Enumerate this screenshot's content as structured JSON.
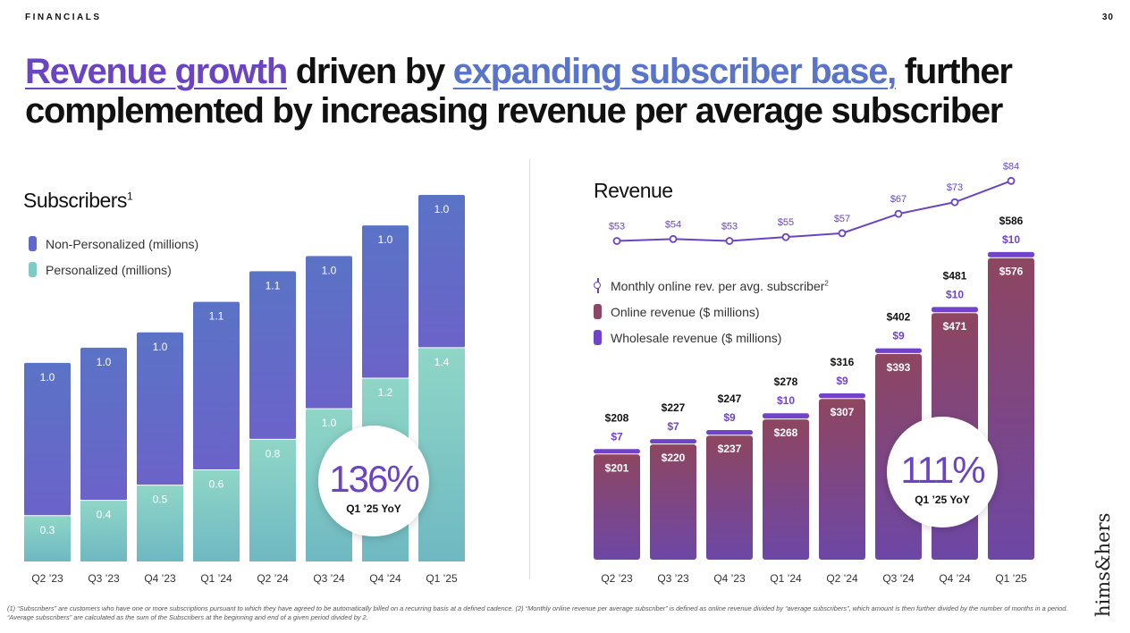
{
  "header": {
    "section_label": "FINANCIALS",
    "page_number": "30"
  },
  "headline": {
    "part1": "Revenue growth",
    "part2": " driven by ",
    "part3": "expanding subscriber base,",
    "part4": " further complemented by increasing revenue per average subscriber"
  },
  "colors": {
    "purple_accent": "#6a44c2",
    "blue_accent": "#5a74c9",
    "non_personalized_top": "#5a73c6",
    "non_personalized_bottom": "#6b63c9",
    "personalized_top": "#8fd6c7",
    "personalized_bottom": "#6fb8c2",
    "online_top": "#8e4660",
    "online_bottom": "#6d47a6",
    "wholesale": "#7143c9"
  },
  "subscribers": {
    "title": "Subscribers",
    "title_sup": "1",
    "legend": [
      {
        "label": "Non-Personalized (millions)",
        "color": "#6069c8"
      },
      {
        "label": "Personalized (millions)",
        "color": "#7fcbc3"
      }
    ],
    "callout": {
      "value": "136%",
      "label": "Q1 ’25 YoY"
    }
  },
  "revenue": {
    "title": "Revenue",
    "legend": [
      {
        "label": "Monthly online rev. per avg. subscriber",
        "sup": "2",
        "type": "line"
      },
      {
        "label": "Online revenue ($ millions)",
        "color": "#8a4767"
      },
      {
        "label": "Wholesale revenue ($ millions)",
        "color": "#7143c9"
      }
    ],
    "callout": {
      "value": "111%",
      "label": "Q1 ’25 YoY"
    }
  },
  "chart_data": [
    {
      "type": "bar",
      "stacked": true,
      "title": "Subscribers",
      "categories": [
        "Q2 ’23",
        "Q3 ’23",
        "Q4 ’23",
        "Q1 ’24",
        "Q2 ’24",
        "Q3 ’24",
        "Q4 ’24",
        "Q1 ’25"
      ],
      "series": [
        {
          "name": "Personalized (millions)",
          "values": [
            0.3,
            0.4,
            0.5,
            0.6,
            0.8,
            1.0,
            1.2,
            1.4
          ],
          "labels": [
            "0.3",
            "0.4",
            "0.5",
            "0.6",
            "0.8",
            "1.0",
            "1.2",
            "1.4"
          ]
        },
        {
          "name": "Non-Personalized (millions)",
          "values": [
            1.0,
            1.0,
            1.0,
            1.1,
            1.1,
            1.0,
            1.0,
            1.0
          ],
          "labels": [
            "1.0",
            "1.0",
            "1.0",
            "1.1",
            "1.1",
            "1.0",
            "1.0",
            "1.0"
          ]
        }
      ],
      "ylim": [
        0,
        2.4
      ]
    },
    {
      "type": "bar",
      "stacked": true,
      "title": "Revenue",
      "categories": [
        "Q2 ’23",
        "Q3 ’23",
        "Q4 ’23",
        "Q1 ’24",
        "Q2 ’24",
        "Q3 ’24",
        "Q4 ’24",
        "Q1 ’25"
      ],
      "series": [
        {
          "name": "Online revenue ($ millions)",
          "values": [
            201,
            220,
            237,
            268,
            307,
            393,
            471,
            576
          ],
          "labels": [
            "$201",
            "$220",
            "$237",
            "$268",
            "$307",
            "$393",
            "$471",
            "$576"
          ]
        },
        {
          "name": "Wholesale revenue ($ millions)",
          "values": [
            7,
            7,
            9,
            10,
            9,
            9,
            10,
            10
          ],
          "labels": [
            "$7",
            "$7",
            "$9",
            "$10",
            "$9",
            "$9",
            "$10",
            "$10"
          ]
        }
      ],
      "totals": [
        208,
        227,
        247,
        278,
        316,
        402,
        481,
        586
      ],
      "total_labels": [
        "$208",
        "$227",
        "$247",
        "$278",
        "$316",
        "$402",
        "$481",
        "$586"
      ],
      "line": {
        "name": "Monthly online rev. per avg. subscriber",
        "values": [
          53,
          54,
          53,
          55,
          57,
          67,
          73,
          84
        ],
        "labels": [
          "$53",
          "$54",
          "$53",
          "$55",
          "$57",
          "$67",
          "$73",
          "$84"
        ]
      },
      "ylim": [
        0,
        608
      ]
    }
  ],
  "footnote": "(1) “Subscribers” are customers who have one or more subscriptions pursuant to which they have agreed to be automatically billed on a recurring basis at a defined cadence. (2) “Monthly online revenue per average subscriber” is defined as online revenue divided by “average subscribers”, which amount is then further divided by the number of months in a period. “Average subscribers” are calculated as the sum of the Subscribers at the beginning and end of a given period divided by 2.",
  "brand": "hims&hers"
}
